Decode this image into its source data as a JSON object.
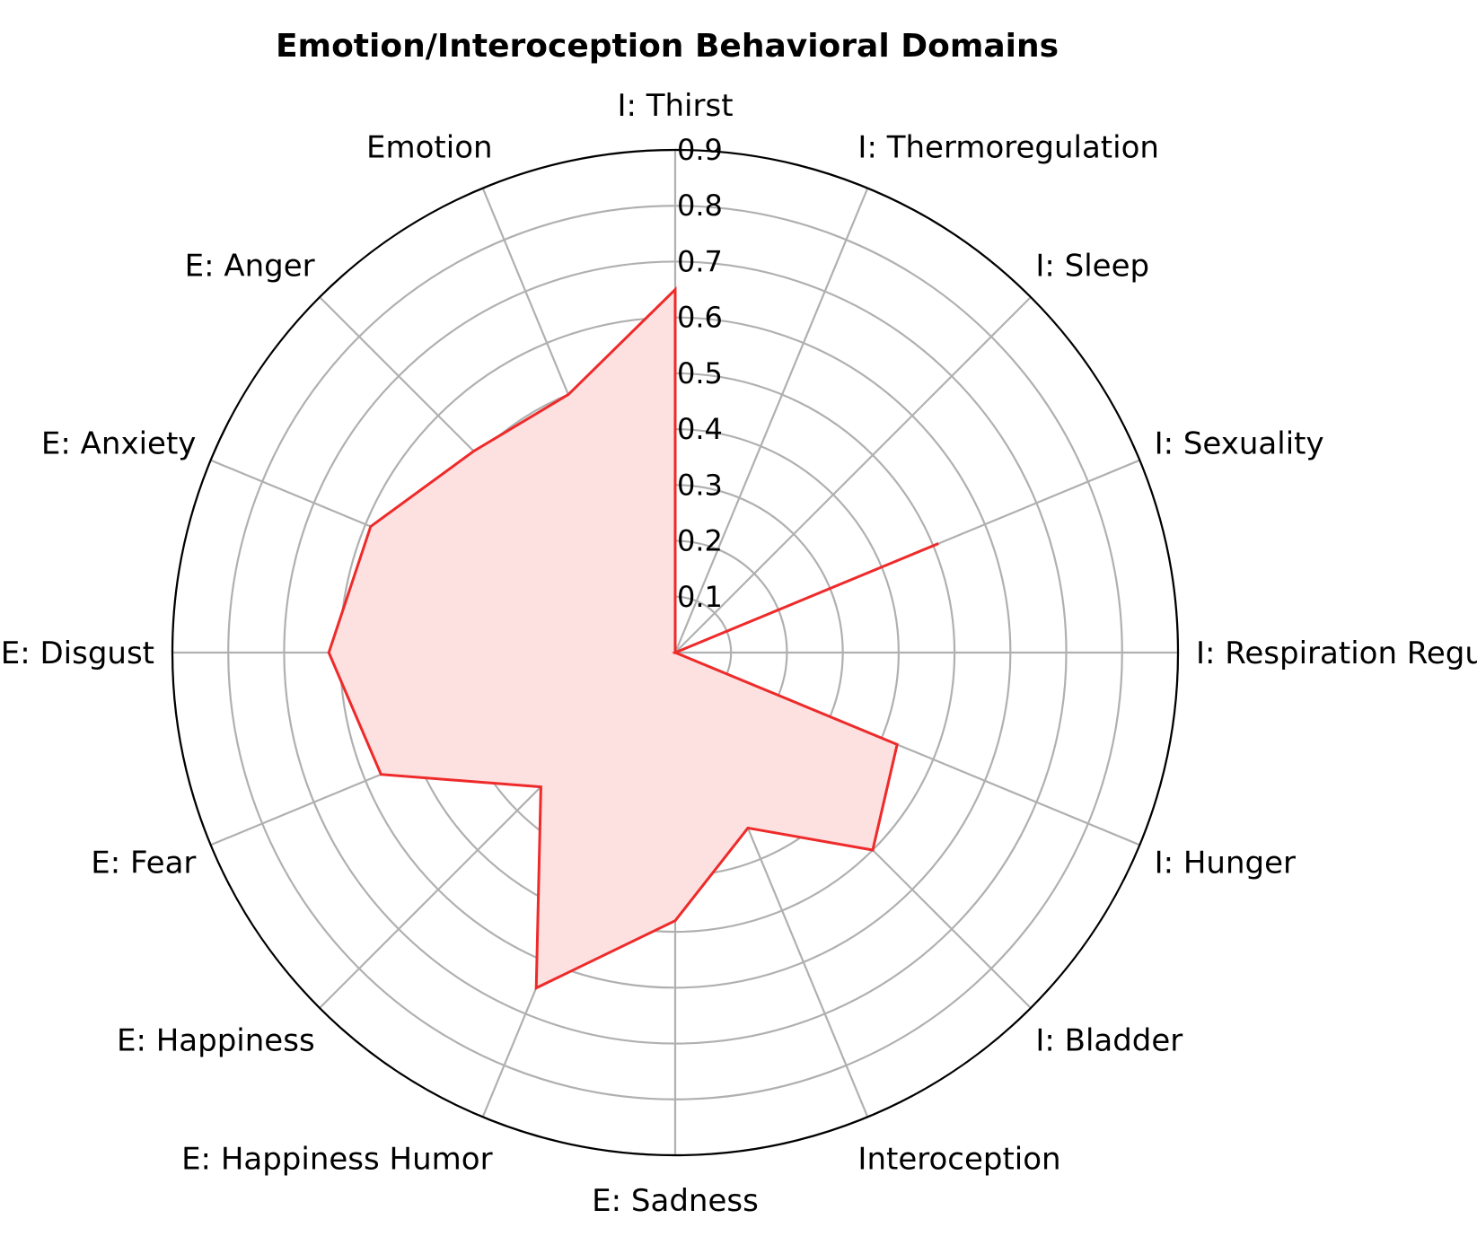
{
  "chart_data": {
    "type": "radar",
    "title": "Emotion/Interoception Behavioral Domains",
    "categories": [
      "I: Thirst",
      "I: Thermoregulation",
      "I: Sleep",
      "I: Sexuality",
      "I: Respiration Regulation",
      "I: Hunger",
      "I: Bladder",
      "Interoception",
      "E: Sadness",
      "E: Happiness Humor",
      "E: Happiness",
      "E: Fear",
      "E: Disgust",
      "E: Anxiety",
      "E: Anger",
      "Emotion"
    ],
    "series": [
      {
        "color": "#ee2a2a",
        "fill_color": "#fde0e0",
        "values": [
          0.65,
          0.0,
          0.0,
          0.51,
          0.0,
          0.43,
          0.5,
          0.34,
          0.48,
          0.65,
          0.34,
          0.57,
          0.62,
          0.59,
          0.51,
          0.5
        ]
      }
    ],
    "rlim": [
      0,
      0.9
    ],
    "r_ticks": [
      "0.1",
      "0.2",
      "0.3",
      "0.4",
      "0.5",
      "0.6",
      "0.7",
      "0.8",
      "0.9"
    ],
    "grid": true
  }
}
